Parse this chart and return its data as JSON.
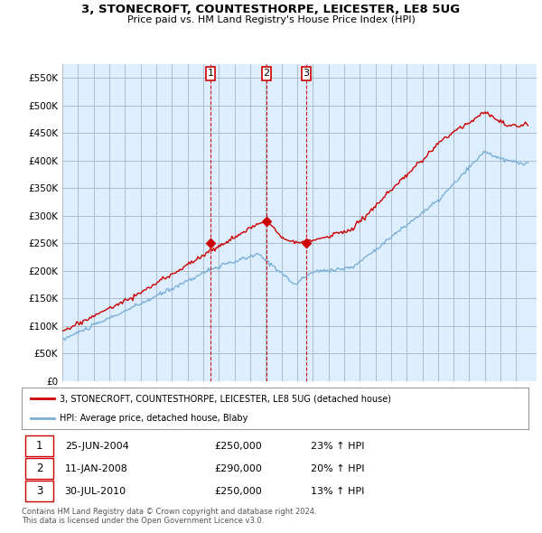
{
  "title": "3, STONECROFT, COUNTESTHORPE, LEICESTER, LE8 5UG",
  "subtitle": "Price paid vs. HM Land Registry's House Price Index (HPI)",
  "ylim": [
    0,
    575000
  ],
  "yticks": [
    0,
    50000,
    100000,
    150000,
    200000,
    250000,
    300000,
    350000,
    400000,
    450000,
    500000,
    550000
  ],
  "ytick_labels": [
    "£0",
    "£50K",
    "£100K",
    "£150K",
    "£200K",
    "£250K",
    "£300K",
    "£350K",
    "£400K",
    "£450K",
    "£500K",
    "£550K"
  ],
  "sales": [
    {
      "label": "1",
      "date_num": 2004.48,
      "price": 250000,
      "pct": "23%",
      "date_str": "25-JUN-2004"
    },
    {
      "label": "2",
      "date_num": 2008.03,
      "price": 290000,
      "pct": "20%",
      "date_str": "11-JAN-2008"
    },
    {
      "label": "3",
      "date_num": 2010.58,
      "price": 250000,
      "pct": "13%",
      "date_str": "30-JUL-2010"
    }
  ],
  "legend_line1": "3, STONECROFT, COUNTESTHORPE, LEICESTER, LE8 5UG (detached house)",
  "legend_line2": "HPI: Average price, detached house, Blaby",
  "footer1": "Contains HM Land Registry data © Crown copyright and database right 2024.",
  "footer2": "This data is licensed under the Open Government Licence v3.0.",
  "red_color": "#cc0000",
  "blue_color": "#7bafd4",
  "chart_bg": "#ddeeff",
  "background": "#ffffff",
  "grid_color": "#aabbcc"
}
